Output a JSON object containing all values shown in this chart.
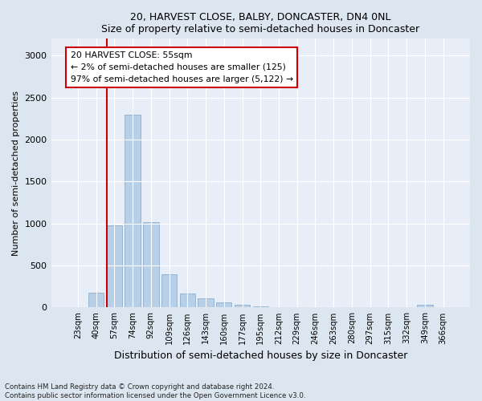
{
  "title1": "20, HARVEST CLOSE, BALBY, DONCASTER, DN4 0NL",
  "title2": "Size of property relative to semi-detached houses in Doncaster",
  "xlabel": "Distribution of semi-detached houses by size in Doncaster",
  "ylabel": "Number of semi-detached properties",
  "categories": [
    "23sqm",
    "40sqm",
    "57sqm",
    "74sqm",
    "92sqm",
    "109sqm",
    "126sqm",
    "143sqm",
    "160sqm",
    "177sqm",
    "195sqm",
    "212sqm",
    "229sqm",
    "246sqm",
    "263sqm",
    "280sqm",
    "297sqm",
    "315sqm",
    "332sqm",
    "349sqm",
    "366sqm"
  ],
  "values": [
    5,
    180,
    975,
    2300,
    1020,
    400,
    165,
    105,
    65,
    30,
    12,
    6,
    4,
    2,
    2,
    1,
    1,
    1,
    0,
    28,
    0
  ],
  "bar_color": "#b8cfe8",
  "bar_edge_color": "#8aaece",
  "vline_color": "#cc0000",
  "annotation_title": "20 HARVEST CLOSE: 55sqm",
  "annotation_line1": "← 2% of semi-detached houses are smaller (125)",
  "annotation_line2": "97% of semi-detached houses are larger (5,122) →",
  "ylim": [
    0,
    3200
  ],
  "yticks": [
    0,
    500,
    1000,
    1500,
    2000,
    2500,
    3000
  ],
  "footer1": "Contains HM Land Registry data © Crown copyright and database right 2024.",
  "footer2": "Contains public sector information licensed under the Open Government Licence v3.0.",
  "background_color": "#dce6f0",
  "plot_bg_color": "#e8eef8"
}
